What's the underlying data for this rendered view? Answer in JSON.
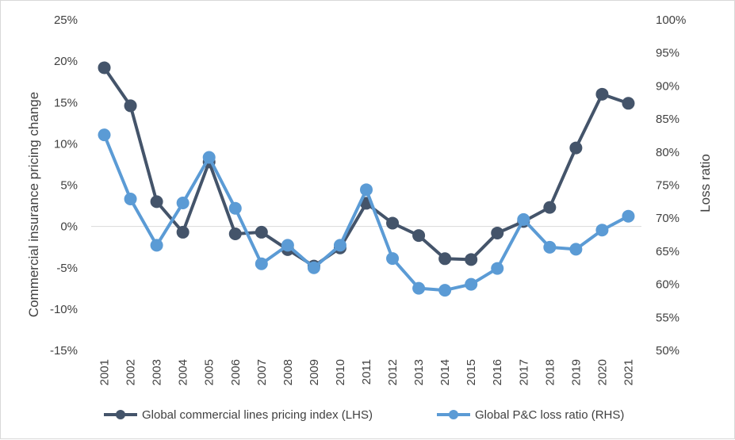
{
  "chart_data": {
    "type": "line",
    "title": "",
    "x": [
      "2001",
      "2002",
      "2003",
      "2004",
      "2005",
      "2006",
      "2007",
      "2008",
      "2009",
      "2010",
      "2011",
      "2012",
      "2013",
      "2014",
      "2015",
      "2016",
      "2017",
      "2018",
      "2019",
      "2020",
      "2021"
    ],
    "y_left": {
      "label": "Commercial insurance pricing change",
      "lim": [
        -15,
        25
      ],
      "ticks": [
        25,
        20,
        15,
        10,
        5,
        0,
        -5,
        -10,
        -15
      ],
      "tick_labels": [
        "25%",
        "20%",
        "15%",
        "10%",
        "5%",
        "0%",
        "-5%",
        "-10%",
        "-15%"
      ]
    },
    "y_right": {
      "label": "Loss ratio",
      "lim": [
        50,
        100
      ],
      "ticks": [
        100,
        95,
        90,
        85,
        80,
        75,
        70,
        65,
        60,
        55,
        50
      ],
      "tick_labels": [
        "100%",
        "95%",
        "90%",
        "85%",
        "80%",
        "75%",
        "70%",
        "65%",
        "60%",
        "55%",
        "50%"
      ]
    },
    "series": [
      {
        "name": "Global commercial lines pricing index (LHS)",
        "axis": "left",
        "color": "#44546a",
        "values": [
          19.2,
          14.6,
          3.0,
          -0.7,
          7.8,
          -0.9,
          -0.7,
          -2.8,
          -4.8,
          -2.6,
          2.8,
          0.4,
          -1.1,
          -3.9,
          -4.0,
          -0.8,
          0.6,
          2.3,
          9.5,
          16.0,
          14.9
        ]
      },
      {
        "name": "Global P&C loss ratio (RHS)",
        "axis": "right",
        "color": "#5b9bd5",
        "values": [
          82.6,
          72.9,
          65.9,
          72.3,
          79.2,
          71.5,
          63.1,
          65.9,
          62.5,
          65.9,
          74.3,
          63.9,
          59.4,
          59.1,
          60.0,
          62.4,
          69.8,
          65.6,
          65.3,
          68.2,
          70.3
        ]
      }
    ],
    "legend": [
      "Global commercial lines pricing index (LHS)",
      "Global P&C loss ratio (RHS)"
    ],
    "legend_position": "bottom",
    "grid": false
  }
}
